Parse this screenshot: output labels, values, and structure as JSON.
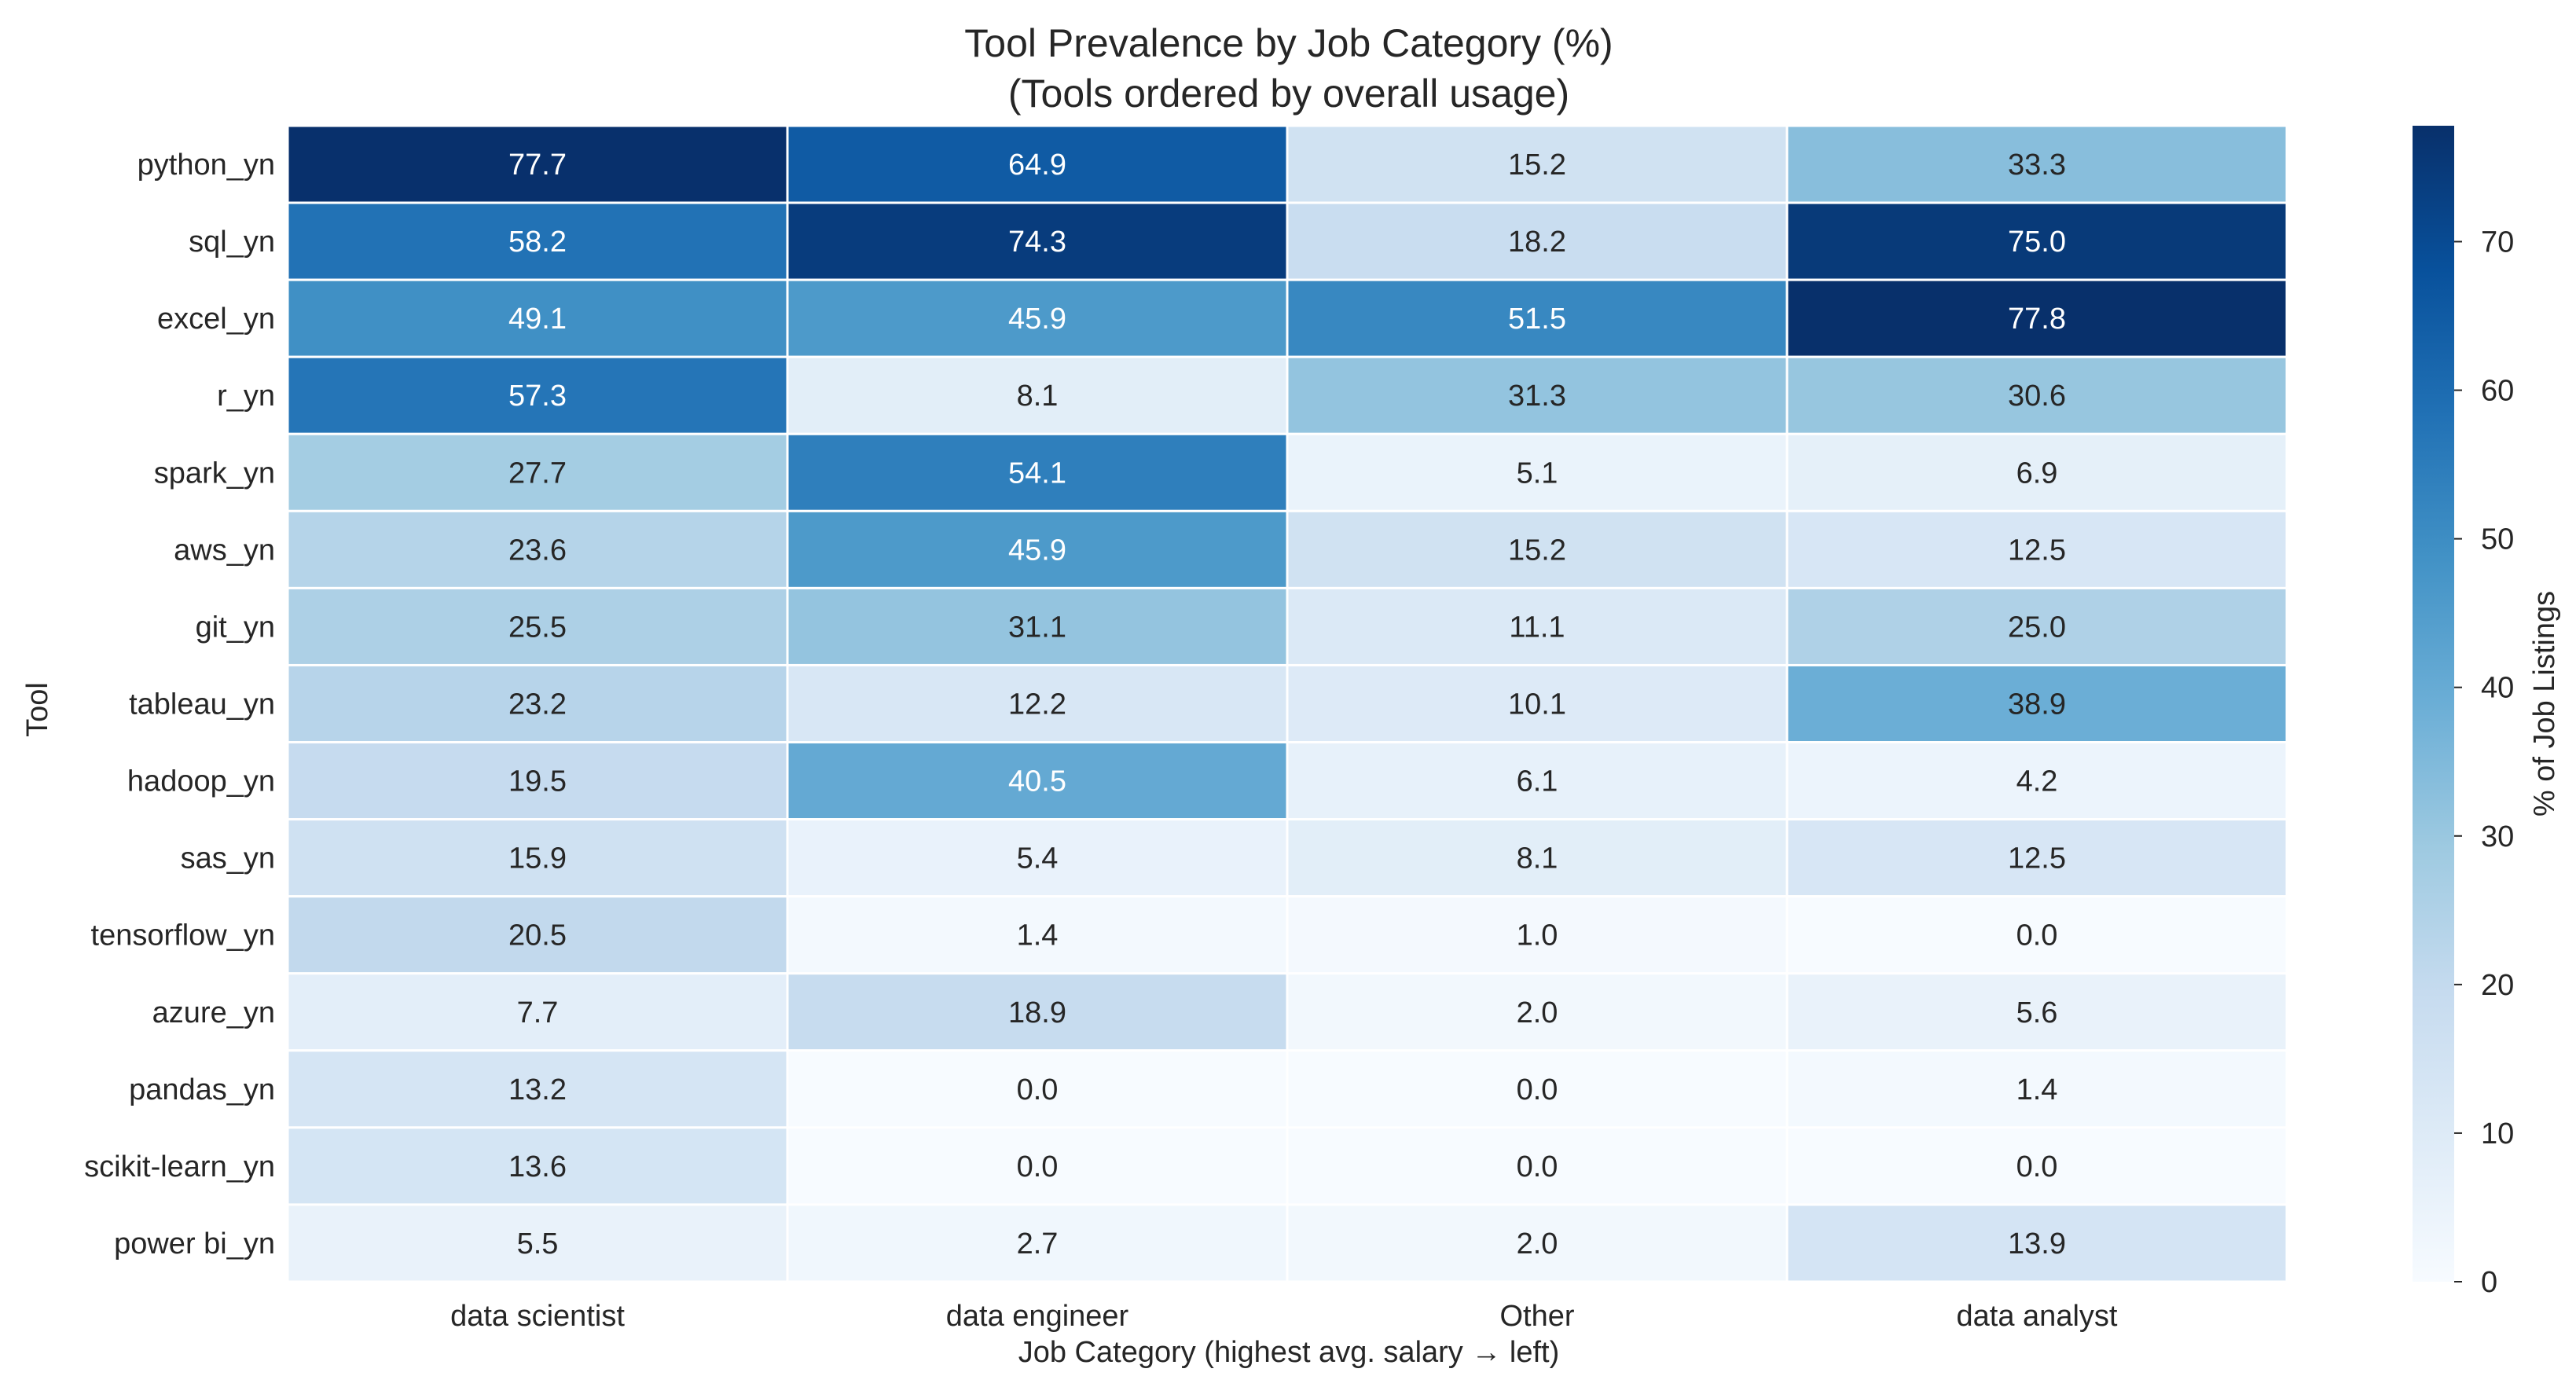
{
  "chart_data": {
    "type": "heatmap",
    "title": "Tool Prevalence by Job Category (%)",
    "subtitle": "(Tools ordered by overall usage)",
    "xlabel": "Job Category (highest avg. salary → left)",
    "ylabel": "Tool",
    "categories": [
      "data scientist",
      "data engineer",
      "Other",
      "data analyst"
    ],
    "rows": [
      "python_yn",
      "sql_yn",
      "excel_yn",
      "r_yn",
      "spark_yn",
      "aws_yn",
      "git_yn",
      "tableau_yn",
      "hadoop_yn",
      "sas_yn",
      "tensorflow_yn",
      "azure_yn",
      "pandas_yn",
      "scikit-learn_yn",
      "power bi_yn"
    ],
    "values": [
      [
        77.7,
        64.9,
        15.2,
        33.3
      ],
      [
        58.2,
        74.3,
        18.2,
        75.0
      ],
      [
        49.1,
        45.9,
        51.5,
        77.8
      ],
      [
        57.3,
        8.1,
        31.3,
        30.6
      ],
      [
        27.7,
        54.1,
        5.1,
        6.9
      ],
      [
        23.6,
        45.9,
        15.2,
        12.5
      ],
      [
        25.5,
        31.1,
        11.1,
        25.0
      ],
      [
        23.2,
        12.2,
        10.1,
        38.9
      ],
      [
        19.5,
        40.5,
        6.1,
        4.2
      ],
      [
        15.9,
        5.4,
        8.1,
        12.5
      ],
      [
        20.5,
        1.4,
        1.0,
        0.0
      ],
      [
        7.7,
        18.9,
        2.0,
        5.6
      ],
      [
        13.2,
        0.0,
        0.0,
        1.4
      ],
      [
        13.6,
        0.0,
        0.0,
        0.0
      ],
      [
        5.5,
        2.7,
        2.0,
        13.9
      ]
    ],
    "colorbar": {
      "label": "% of Job Listings",
      "range": [
        0,
        77.8
      ],
      "ticks": [
        0,
        10,
        20,
        30,
        40,
        50,
        60,
        70
      ]
    },
    "colormap": "Blues",
    "colors": [
      "#f7fbff",
      "#deebf7",
      "#c6dbef",
      "#9ecae1",
      "#6baed6",
      "#4292c6",
      "#2171b5",
      "#08519c",
      "#08306b"
    ],
    "grid": false
  }
}
